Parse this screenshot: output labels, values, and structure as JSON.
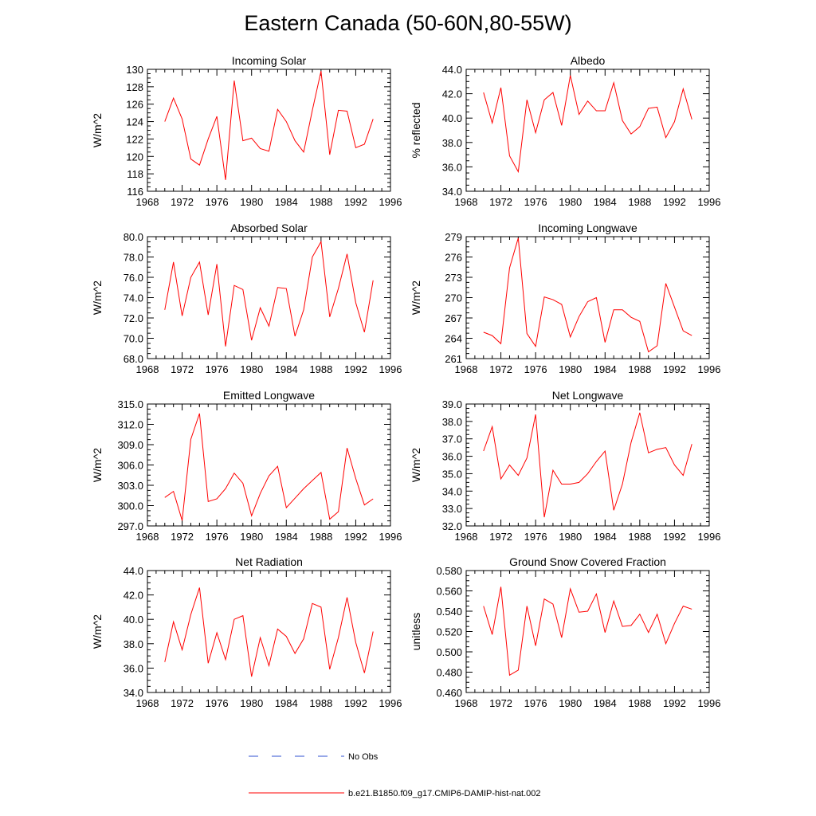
{
  "title": "Eastern Canada (50-60N,80-55W)",
  "chart_data": [
    {
      "type": "line",
      "title": "Incoming Solar",
      "ylabel": "W/m^2",
      "xlim": [
        1968,
        1996
      ],
      "xticks": [
        1968,
        1972,
        1976,
        1980,
        1984,
        1988,
        1992,
        1996
      ],
      "ylim": [
        116,
        130
      ],
      "yticks": [
        "116",
        "118",
        "120",
        "122",
        "124",
        "126",
        "128",
        "130"
      ],
      "x": [
        1970,
        1971,
        1972,
        1973,
        1974,
        1975,
        1976,
        1977,
        1978,
        1979,
        1980,
        1981,
        1982,
        1983,
        1984,
        1985,
        1986,
        1987,
        1988,
        1989,
        1990,
        1991,
        1992,
        1993,
        1994
      ],
      "series": [
        {
          "name": "b.e21.B1850.f09_g17.CMIP6-DAMIP-hist-nat.002",
          "color": "#ff0000",
          "values": [
            124.0,
            126.7,
            124.3,
            119.7,
            119.0,
            122.0,
            124.6,
            117.3,
            128.7,
            121.8,
            122.1,
            120.9,
            120.6,
            125.4,
            124.0,
            121.8,
            120.5,
            125.3,
            129.8,
            120.2,
            125.3,
            125.2,
            121.0,
            121.4,
            124.3
          ]
        }
      ]
    },
    {
      "type": "line",
      "title": "Albedo",
      "ylabel": "% reflected",
      "xlim": [
        1968,
        1996
      ],
      "xticks": [
        1968,
        1972,
        1976,
        1980,
        1984,
        1988,
        1992,
        1996
      ],
      "ylim": [
        34,
        44
      ],
      "yticks": [
        "34.0",
        "36.0",
        "38.0",
        "40.0",
        "42.0",
        "44.0"
      ],
      "x": [
        1970,
        1971,
        1972,
        1973,
        1974,
        1975,
        1976,
        1977,
        1978,
        1979,
        1980,
        1981,
        1982,
        1983,
        1984,
        1985,
        1986,
        1987,
        1988,
        1989,
        1990,
        1991,
        1992,
        1993,
        1994
      ],
      "series": [
        {
          "name": "b.e21.B1850.f09_g17.CMIP6-DAMIP-hist-nat.002",
          "color": "#ff0000",
          "values": [
            42.1,
            39.6,
            42.5,
            36.9,
            35.6,
            41.5,
            38.8,
            41.5,
            42.1,
            39.4,
            43.5,
            40.3,
            41.4,
            40.6,
            40.6,
            42.9,
            39.8,
            38.7,
            39.3,
            40.8,
            40.9,
            38.4,
            39.7,
            42.4,
            39.9
          ]
        }
      ]
    },
    {
      "type": "line",
      "title": "Absorbed Solar",
      "ylabel": "W/m^2",
      "xlim": [
        1968,
        1996
      ],
      "xticks": [
        1968,
        1972,
        1976,
        1980,
        1984,
        1988,
        1992,
        1996
      ],
      "ylim": [
        68,
        80
      ],
      "yticks": [
        "68.0",
        "70.0",
        "72.0",
        "74.0",
        "76.0",
        "78.0",
        "80.0"
      ],
      "x": [
        1970,
        1971,
        1972,
        1973,
        1974,
        1975,
        1976,
        1977,
        1978,
        1979,
        1980,
        1981,
        1982,
        1983,
        1984,
        1985,
        1986,
        1987,
        1988,
        1989,
        1990,
        1991,
        1992,
        1993,
        1994
      ],
      "series": [
        {
          "name": "b.e21.B1850.f09_g17.CMIP6-DAMIP-hist-nat.002",
          "color": "#ff0000",
          "values": [
            72.8,
            77.5,
            72.2,
            76.0,
            77.5,
            72.3,
            77.3,
            69.2,
            75.2,
            74.8,
            69.8,
            73.0,
            71.2,
            75.0,
            74.9,
            70.2,
            72.8,
            78.0,
            79.5,
            72.1,
            74.9,
            78.3,
            73.5,
            70.6,
            75.7
          ]
        }
      ]
    },
    {
      "type": "line",
      "title": "Incoming Longwave",
      "ylabel": "W/m^2",
      "xlim": [
        1968,
        1996
      ],
      "xticks": [
        1968,
        1972,
        1976,
        1980,
        1984,
        1988,
        1992,
        1996
      ],
      "ylim": [
        261,
        279
      ],
      "yticks": [
        "261",
        "264",
        "267",
        "270",
        "273",
        "276",
        "279"
      ],
      "x": [
        1970,
        1971,
        1972,
        1973,
        1974,
        1975,
        1976,
        1977,
        1978,
        1979,
        1980,
        1981,
        1982,
        1983,
        1984,
        1985,
        1986,
        1987,
        1988,
        1989,
        1990,
        1991,
        1992,
        1993,
        1994
      ],
      "series": [
        {
          "name": "b.e21.B1850.f09_g17.CMIP6-DAMIP-hist-nat.002",
          "color": "#ff0000",
          "values": [
            264.9,
            264.4,
            263.2,
            274.4,
            278.8,
            264.7,
            262.8,
            270.1,
            269.7,
            269.0,
            264.2,
            267.2,
            269.4,
            270.0,
            263.4,
            268.2,
            268.2,
            267.1,
            266.5,
            262.0,
            262.9,
            272.1,
            268.6,
            265.1,
            264.4
          ]
        }
      ]
    },
    {
      "type": "line",
      "title": "Emitted Longwave",
      "ylabel": "W/m^2",
      "xlim": [
        1968,
        1996
      ],
      "xticks": [
        1968,
        1972,
        1976,
        1980,
        1984,
        1988,
        1992,
        1996
      ],
      "ylim": [
        297,
        315
      ],
      "yticks": [
        "297.0",
        "300.0",
        "303.0",
        "306.0",
        "309.0",
        "312.0",
        "315.0"
      ],
      "x": [
        1970,
        1971,
        1972,
        1973,
        1974,
        1975,
        1976,
        1977,
        1978,
        1979,
        1980,
        1981,
        1982,
        1983,
        1984,
        1985,
        1986,
        1987,
        1988,
        1989,
        1990,
        1991,
        1992,
        1993,
        1994
      ],
      "series": [
        {
          "name": "b.e21.B1850.f09_g17.CMIP6-DAMIP-hist-nat.002",
          "color": "#ff0000",
          "values": [
            301.2,
            302.1,
            297.8,
            309.8,
            313.6,
            300.6,
            301.0,
            302.5,
            304.8,
            303.3,
            298.5,
            301.8,
            304.4,
            305.8,
            299.7,
            301.1,
            302.5,
            303.7,
            304.9,
            298.0,
            299.1,
            308.5,
            304.0,
            300.1,
            301.0
          ]
        }
      ]
    },
    {
      "type": "line",
      "title": "Net Longwave",
      "ylabel": "W/m^2",
      "xlim": [
        1968,
        1996
      ],
      "xticks": [
        1968,
        1972,
        1976,
        1980,
        1984,
        1988,
        1992,
        1996
      ],
      "ylim": [
        32,
        39
      ],
      "yticks": [
        "32.0",
        "33.0",
        "34.0",
        "35.0",
        "36.0",
        "37.0",
        "38.0",
        "39.0"
      ],
      "x": [
        1970,
        1971,
        1972,
        1973,
        1974,
        1975,
        1976,
        1977,
        1978,
        1979,
        1980,
        1981,
        1982,
        1983,
        1984,
        1985,
        1986,
        1987,
        1988,
        1989,
        1990,
        1991,
        1992,
        1993,
        1994
      ],
      "series": [
        {
          "name": "b.e21.B1850.f09_g17.CMIP6-DAMIP-hist-nat.002",
          "color": "#ff0000",
          "values": [
            36.3,
            37.7,
            34.7,
            35.5,
            34.9,
            35.9,
            38.4,
            32.5,
            35.2,
            34.4,
            34.4,
            34.5,
            35.0,
            35.7,
            36.3,
            32.9,
            34.4,
            36.8,
            38.5,
            36.2,
            36.4,
            36.5,
            35.5,
            34.9,
            36.7
          ]
        }
      ]
    },
    {
      "type": "line",
      "title": "Net Radiation",
      "ylabel": "W/m^2",
      "xlim": [
        1968,
        1996
      ],
      "xticks": [
        1968,
        1972,
        1976,
        1980,
        1984,
        1988,
        1992,
        1996
      ],
      "ylim": [
        34,
        44
      ],
      "yticks": [
        "34.0",
        "36.0",
        "38.0",
        "40.0",
        "42.0",
        "44.0"
      ],
      "x": [
        1970,
        1971,
        1972,
        1973,
        1974,
        1975,
        1976,
        1977,
        1978,
        1979,
        1980,
        1981,
        1982,
        1983,
        1984,
        1985,
        1986,
        1987,
        1988,
        1989,
        1990,
        1991,
        1992,
        1993,
        1994
      ],
      "series": [
        {
          "name": "b.e21.B1850.f09_g17.CMIP6-DAMIP-hist-nat.002",
          "color": "#ff0000",
          "values": [
            36.5,
            39.8,
            37.5,
            40.4,
            42.6,
            36.4,
            38.9,
            36.7,
            40.0,
            40.3,
            35.3,
            38.5,
            36.2,
            39.2,
            38.6,
            37.2,
            38.4,
            41.3,
            41.0,
            35.9,
            38.5,
            41.8,
            38.1,
            35.6,
            39.0
          ]
        }
      ]
    },
    {
      "type": "line",
      "title": "Ground Snow Covered Fraction",
      "ylabel": "unitless",
      "xlim": [
        1968,
        1996
      ],
      "xticks": [
        1968,
        1972,
        1976,
        1980,
        1984,
        1988,
        1992,
        1996
      ],
      "ylim": [
        0.46,
        0.58
      ],
      "yticks": [
        "0.460",
        "0.480",
        "0.500",
        "0.520",
        "0.540",
        "0.560",
        "0.580"
      ],
      "x": [
        1970,
        1971,
        1972,
        1973,
        1974,
        1975,
        1976,
        1977,
        1978,
        1979,
        1980,
        1981,
        1982,
        1983,
        1984,
        1985,
        1986,
        1987,
        1988,
        1989,
        1990,
        1991,
        1992,
        1993,
        1994
      ],
      "series": [
        {
          "name": "b.e21.B1850.f09_g17.CMIP6-DAMIP-hist-nat.002",
          "color": "#ff0000",
          "values": [
            0.545,
            0.517,
            0.564,
            0.477,
            0.482,
            0.545,
            0.506,
            0.552,
            0.547,
            0.514,
            0.562,
            0.539,
            0.54,
            0.557,
            0.519,
            0.55,
            0.525,
            0.526,
            0.537,
            0.519,
            0.537,
            0.508,
            0.528,
            0.545,
            0.542
          ]
        }
      ]
    }
  ],
  "legend": {
    "items": [
      {
        "label": "No Obs",
        "color": "#3050d0",
        "style": "dashed"
      },
      {
        "label": "b.e21.B1850.f09_g17.CMIP6-DAMIP-hist-nat.002",
        "color": "#ff0000",
        "style": "solid"
      }
    ]
  }
}
